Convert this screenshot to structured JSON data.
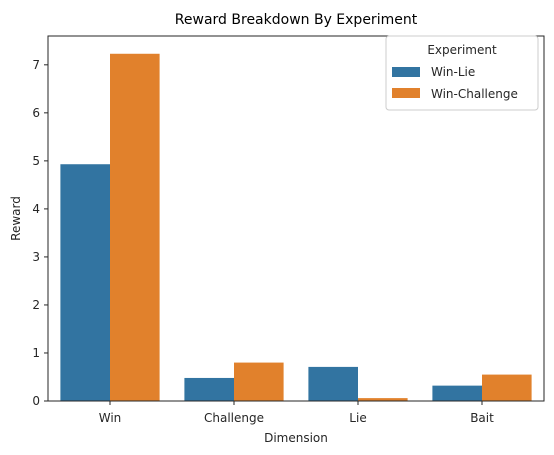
{
  "chart_data": {
    "type": "bar",
    "title": "Reward Breakdown By Experiment",
    "xlabel": "Dimension",
    "ylabel": "Reward",
    "categories": [
      "Win",
      "Challenge",
      "Lie",
      "Bait"
    ],
    "series": [
      {
        "name": "Win-Lie",
        "values": [
          4.93,
          0.48,
          0.71,
          0.32
        ],
        "color": "#3274a1"
      },
      {
        "name": "Win-Challenge",
        "values": [
          7.23,
          0.8,
          0.06,
          0.55
        ],
        "color": "#e1812c"
      }
    ],
    "ylim": [
      0,
      7.6
    ],
    "yticks": [
      "0",
      "1",
      "2",
      "3",
      "4",
      "5",
      "6",
      "7"
    ],
    "grid": false,
    "legend": {
      "title": "Experiment",
      "position": "top-right"
    }
  }
}
